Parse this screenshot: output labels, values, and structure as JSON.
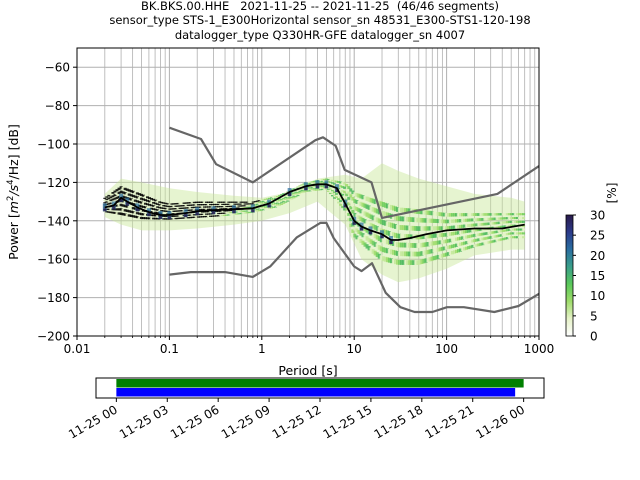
{
  "title_lines": [
    "BK.BKS.00.HHE   2021-11-25 -- 2021-11-25  (46/46 segments)",
    "sensor_type STS-1_E300Horizontal sensor_sn 48531_E300-STS1-120-198",
    "datalogger_type Q330HR-GFE datalogger_sn 4007"
  ],
  "chart_data": [
    {
      "type": "heatmap",
      "title": "BK.BKS.00.HHE   2021-11-25 -- 2021-11-25  (46/46 segments)",
      "xlabel": "Period [s]",
      "ylabel": "Power [m²/s⁴/Hz] [dB]",
      "ylabel_parts": {
        "prefix": "Power [",
        "m": "m",
        "exp1": "2",
        "s": "/s",
        "exp2": "4",
        "suffix": "/Hz] [dB]"
      },
      "x_scale": "log",
      "xlim": [
        0.01,
        1000
      ],
      "ylim": [
        -200,
        -50
      ],
      "x_ticks": [
        {
          "value": 0.01,
          "label": "0.01"
        },
        {
          "value": 0.1,
          "label": "0.1"
        },
        {
          "value": 1,
          "label": "1"
        },
        {
          "value": 10,
          "label": "10"
        },
        {
          "value": 100,
          "label": "100"
        },
        {
          "value": 1000,
          "label": "1000"
        }
      ],
      "y_ticks": [
        {
          "value": -60,
          "label": "−60"
        },
        {
          "value": -80,
          "label": "−80"
        },
        {
          "value": -100,
          "label": "−100"
        },
        {
          "value": -120,
          "label": "−120"
        },
        {
          "value": -140,
          "label": "−140"
        },
        {
          "value": -160,
          "label": "−160"
        },
        {
          "value": -180,
          "label": "−180"
        },
        {
          "value": -200,
          "label": "−200"
        }
      ],
      "grid": true,
      "colorbar": {
        "label": "[%]",
        "range": [
          0,
          30
        ],
        "ticks": [
          {
            "value": 0,
            "label": "0"
          },
          {
            "value": 5,
            "label": "5"
          },
          {
            "value": 10,
            "label": "10"
          },
          {
            "value": 15,
            "label": "15"
          },
          {
            "value": 20,
            "label": "20"
          },
          {
            "value": 25,
            "label": "25"
          },
          {
            "value": 30,
            "label": "30"
          }
        ],
        "stops": [
          "#ffffff",
          "#e6f2c8",
          "#9fdc6b",
          "#5ac85a",
          "#3a9f8a",
          "#2a6ea0",
          "#2b3a8a",
          "#2a1a4a"
        ]
      },
      "noise_model_high": {
        "color": "#666666",
        "x": [
          0.1,
          0.22,
          0.32,
          0.8,
          3.8,
          4.6,
          6.3,
          7.9,
          15.4,
          20,
          354.8,
          1000
        ],
        "y": [
          -91.5,
          -97.4,
          -110.5,
          -120,
          -98,
          -96.5,
          -101,
          -113.5,
          -120,
          -138.5,
          -126,
          -111.5
        ]
      },
      "noise_model_low": {
        "color": "#666666",
        "x": [
          0.1,
          0.17,
          0.4,
          0.8,
          1.24,
          2.4,
          4.3,
          5,
          6,
          10,
          12,
          15.6,
          21.9,
          31.6,
          45,
          70,
          101,
          154,
          328,
          600,
          1000
        ],
        "y": [
          -168,
          -166.7,
          -166.7,
          -169.2,
          -163.7,
          -148.6,
          -141.1,
          -141.1,
          -149,
          -163.8,
          -166.2,
          -162.1,
          -177.5,
          -185,
          -187.5,
          -187.5,
          -185,
          -185,
          -187.5,
          -184.4,
          -178
        ]
      },
      "psd_mode": {
        "color": "#000000",
        "x": [
          0.02,
          0.025,
          0.03,
          0.035,
          0.045,
          0.06,
          0.08,
          0.1,
          0.15,
          0.2,
          0.3,
          0.5,
          0.8,
          1.2,
          2,
          3,
          4,
          5,
          6.5,
          8,
          10,
          12,
          15,
          20,
          25,
          30,
          40,
          60,
          100,
          200,
          400,
          700
        ],
        "y": [
          -133,
          -132,
          -128,
          -130,
          -133,
          -135.5,
          -137,
          -137,
          -136,
          -135,
          -134.5,
          -134,
          -133.5,
          -131,
          -125,
          -122,
          -121,
          -121,
          -123,
          -131,
          -140,
          -143,
          -145,
          -147,
          -150,
          -150,
          -149,
          -147,
          -145,
          -144,
          -144,
          -142
        ]
      },
      "psd_band": {
        "x": [
          0.02,
          0.03,
          0.05,
          0.08,
          0.1,
          0.2,
          0.4,
          0.8,
          1.5,
          3,
          5,
          8,
          10,
          15,
          20,
          30,
          50,
          100,
          200,
          500,
          700
        ],
        "upper": [
          -128,
          -122,
          -126,
          -130,
          -131,
          -130,
          -130,
          -130,
          -127,
          -120,
          -118,
          -120,
          -125,
          -128,
          -130,
          -133,
          -134,
          -136,
          -136,
          -136,
          -136
        ],
        "lower": [
          -136,
          -138,
          -140,
          -140,
          -140,
          -139,
          -138,
          -136,
          -133,
          -125,
          -124,
          -136,
          -150,
          -158,
          -163,
          -165,
          -165,
          -160,
          -155,
          -150,
          -150
        ]
      },
      "psd_faint_band": {
        "x": [
          0.02,
          0.03,
          0.05,
          0.1,
          0.2,
          0.5,
          1,
          2,
          4,
          8,
          12,
          20,
          30,
          50,
          100,
          200,
          500,
          700
        ],
        "upper": [
          -126,
          -118,
          -120,
          -123,
          -125,
          -127,
          -128,
          -125,
          -118,
          -116,
          -118,
          -110,
          -114,
          -118,
          -122,
          -126,
          -128,
          -130
        ],
        "lower": [
          -138,
          -142,
          -145,
          -145,
          -144,
          -142,
          -140,
          -136,
          -130,
          -142,
          -160,
          -168,
          -172,
          -170,
          -165,
          -158,
          -155,
          -155
        ]
      }
    },
    {
      "type": "timeline",
      "x_ticks": [
        {
          "value": 0,
          "label": "11-25 00"
        },
        {
          "value": 3,
          "label": "11-25 03"
        },
        {
          "value": 6,
          "label": "11-25 06"
        },
        {
          "value": 9,
          "label": "11-25 09"
        },
        {
          "value": 12,
          "label": "11-25 12"
        },
        {
          "value": 15,
          "label": "11-25 15"
        },
        {
          "value": 18,
          "label": "11-25 18"
        },
        {
          "value": 21,
          "label": "11-25 21"
        },
        {
          "value": 24,
          "label": "11-26 00"
        }
      ],
      "xlim": [
        -1.2,
        25.2
      ],
      "bars": [
        {
          "color": "#008000",
          "start": 0,
          "end": 24.0
        },
        {
          "color": "#0000ff",
          "start": 0,
          "end": 23.5
        }
      ]
    }
  ]
}
